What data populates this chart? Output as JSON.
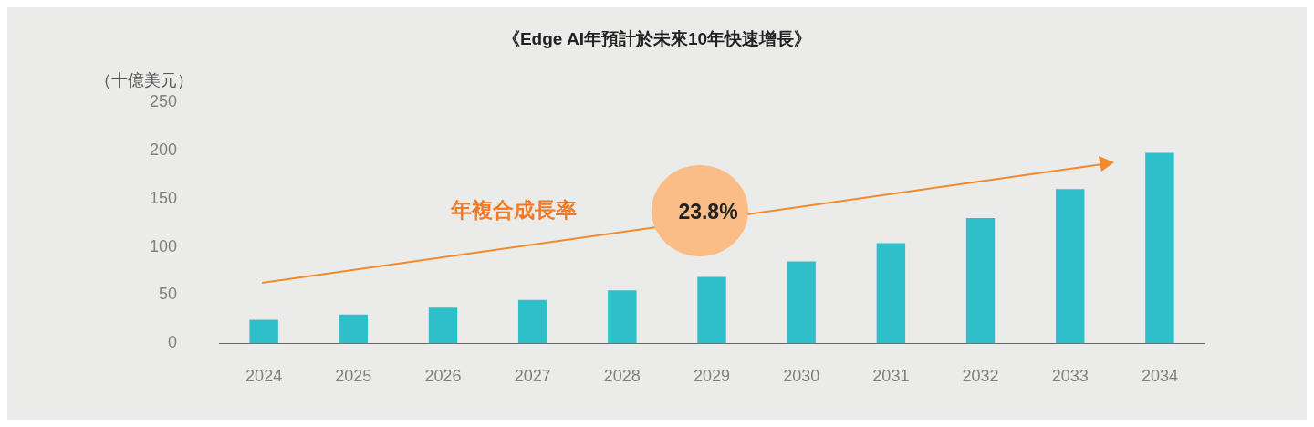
{
  "chart_data": {
    "type": "bar",
    "title": "《Edge AI年預計於未來10年快速增長》",
    "ylabel": "（十億美元）",
    "categories": [
      "2024",
      "2025",
      "2026",
      "2027",
      "2028",
      "2029",
      "2030",
      "2031",
      "2032",
      "2033",
      "2034"
    ],
    "values": [
      24.5,
      30,
      37,
      45,
      55,
      69,
      85,
      104,
      130,
      160,
      197.5
    ],
    "color": "#2fbfca",
    "ylim": [
      0,
      250
    ],
    "yticks": [
      0,
      50,
      100,
      150,
      200,
      250
    ],
    "grid": false,
    "legend": false,
    "annotations": [
      "年複合成長率",
      "23.8%"
    ]
  }
}
